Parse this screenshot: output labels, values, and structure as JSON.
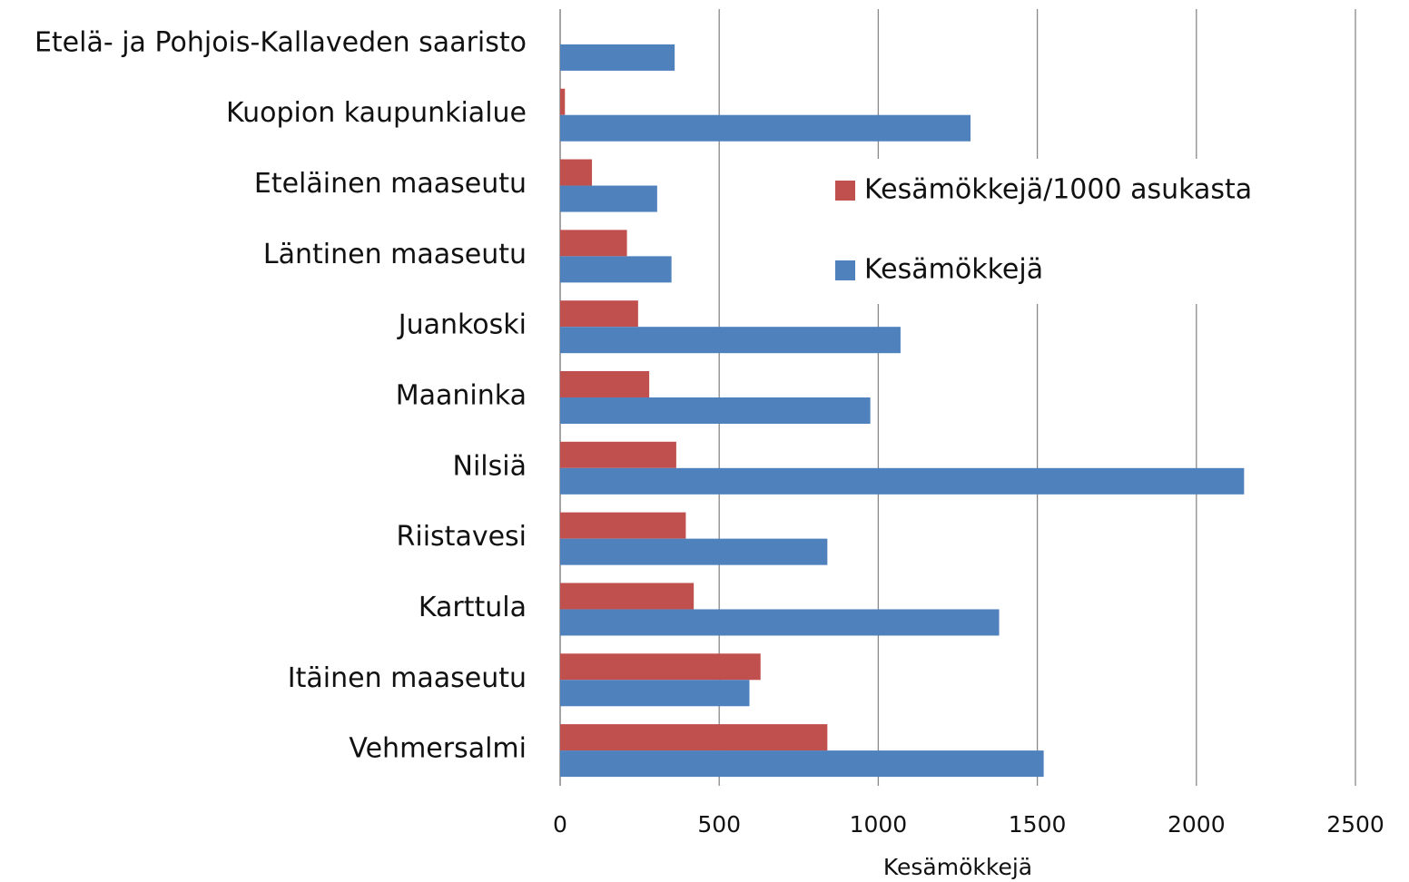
{
  "chart_data": {
    "type": "barh",
    "categories": [
      "Etelä- ja Pohjois-Kallaveden saaristo",
      "Kuopion kaupunkialue",
      "Eteläinen maaseutu",
      "Läntinen maaseutu",
      "Juankoski",
      "Maaninka",
      "Nilsiä",
      "Riistavesi",
      "Karttula",
      "Itäinen maaseutu",
      "Vehmersalmi"
    ],
    "series": [
      {
        "name": "Kesämökkejä/1000 asukasta",
        "color": "#c0504d",
        "values": [
          null,
          15,
          100,
          210,
          245,
          280,
          365,
          395,
          420,
          630,
          840
        ]
      },
      {
        "name": "Kesämökkejä",
        "color": "#4f81bd",
        "values": [
          360,
          1290,
          305,
          350,
          1070,
          975,
          2150,
          840,
          1380,
          595,
          1520
        ]
      }
    ],
    "xlabel": "Kesämökkejä",
    "xlim": [
      0,
      2500
    ],
    "xticks": [
      0,
      500,
      1000,
      1500,
      2000,
      2500
    ],
    "grid": true,
    "legend": "right"
  }
}
